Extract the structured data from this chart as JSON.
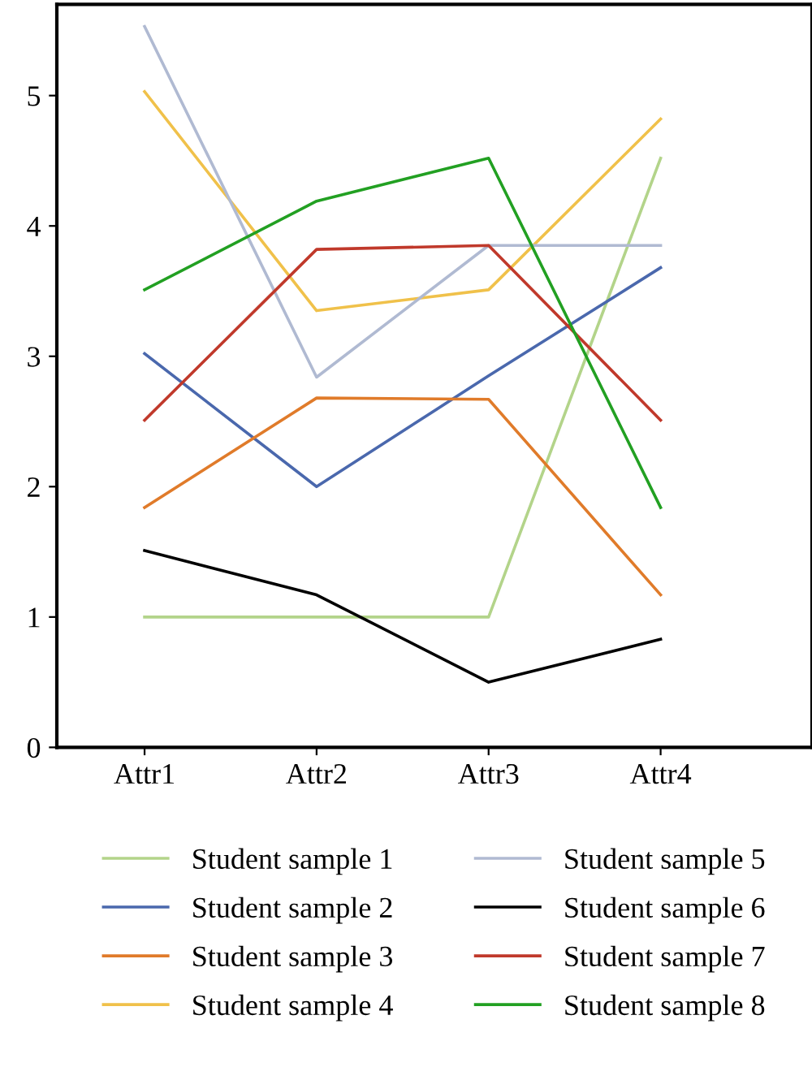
{
  "chart_data": {
    "type": "line",
    "categories": [
      "Attr1",
      "Attr2",
      "Attr3",
      "Attr4"
    ],
    "series": [
      {
        "name": "Student sample 1",
        "color": "#b3d48a",
        "values": [
          1,
          1,
          1,
          4.52
        ]
      },
      {
        "name": "Student sample 2",
        "color": "#4a68ad",
        "values": [
          3.02,
          2.0,
          2.85,
          3.68
        ]
      },
      {
        "name": "Student sample 3",
        "color": "#e07b2a",
        "values": [
          1.84,
          2.68,
          2.67,
          1.17
        ]
      },
      {
        "name": "Student sample 4",
        "color": "#f0c14a",
        "values": [
          5.03,
          3.35,
          3.51,
          4.82
        ]
      },
      {
        "name": "Student sample 5",
        "color": "#b0bad2",
        "values": [
          5.53,
          2.84,
          3.85,
          3.85
        ]
      },
      {
        "name": "Student sample 6",
        "color": "#000000",
        "values": [
          1.51,
          1.17,
          0.5,
          0.83
        ]
      },
      {
        "name": "Student sample 7",
        "color": "#c0392b",
        "values": [
          2.51,
          3.82,
          3.85,
          2.51
        ]
      },
      {
        "name": "Student sample 8",
        "color": "#22a022",
        "values": [
          3.51,
          4.19,
          4.52,
          1.84
        ]
      }
    ],
    "ylim": [
      0,
      5.7
    ],
    "yticks": [
      0,
      1,
      2,
      3,
      4,
      5
    ],
    "grid": false,
    "legend": "bottom",
    "marker": "none",
    "line_style": "solid"
  }
}
